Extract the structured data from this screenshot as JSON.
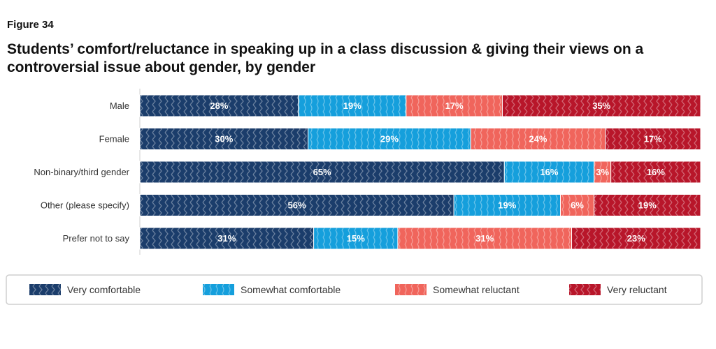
{
  "figure_label": "Figure 34",
  "chart_data": {
    "type": "bar",
    "orientation": "horizontal",
    "stacked": true,
    "percent": true,
    "title": "Students’ comfort/reluctance in speaking up in a class discussion & giving their views on a controversial issue about gender, by gender",
    "categories": [
      "Male",
      "Female",
      "Non-binary/third gender",
      "Other (please specify)",
      "Prefer not to say"
    ],
    "series": [
      {
        "name": "Very comfortable",
        "color": "#1b3d6b",
        "values": [
          28,
          30,
          65,
          56,
          31
        ]
      },
      {
        "name": "Somewhat comfortable",
        "color": "#159fdc",
        "values": [
          19,
          29,
          16,
          19,
          15
        ]
      },
      {
        "name": "Somewhat reluctant",
        "color": "#f0655c",
        "values": [
          17,
          24,
          3,
          6,
          31
        ]
      },
      {
        "name": "Very reluctant",
        "color": "#b8162a",
        "values": [
          35,
          17,
          16,
          19,
          23
        ]
      }
    ],
    "value_labels": [
      [
        "28%",
        "30%",
        "65%",
        "56%",
        "31%"
      ],
      [
        "19%",
        "29%",
        "16%",
        "19%",
        "15%"
      ],
      [
        "17%",
        "24%",
        "3%",
        "6%",
        "31%"
      ],
      [
        "35%",
        "17%",
        "16%",
        "19%",
        "23%"
      ]
    ],
    "legend_position": "bottom",
    "grid": false
  }
}
